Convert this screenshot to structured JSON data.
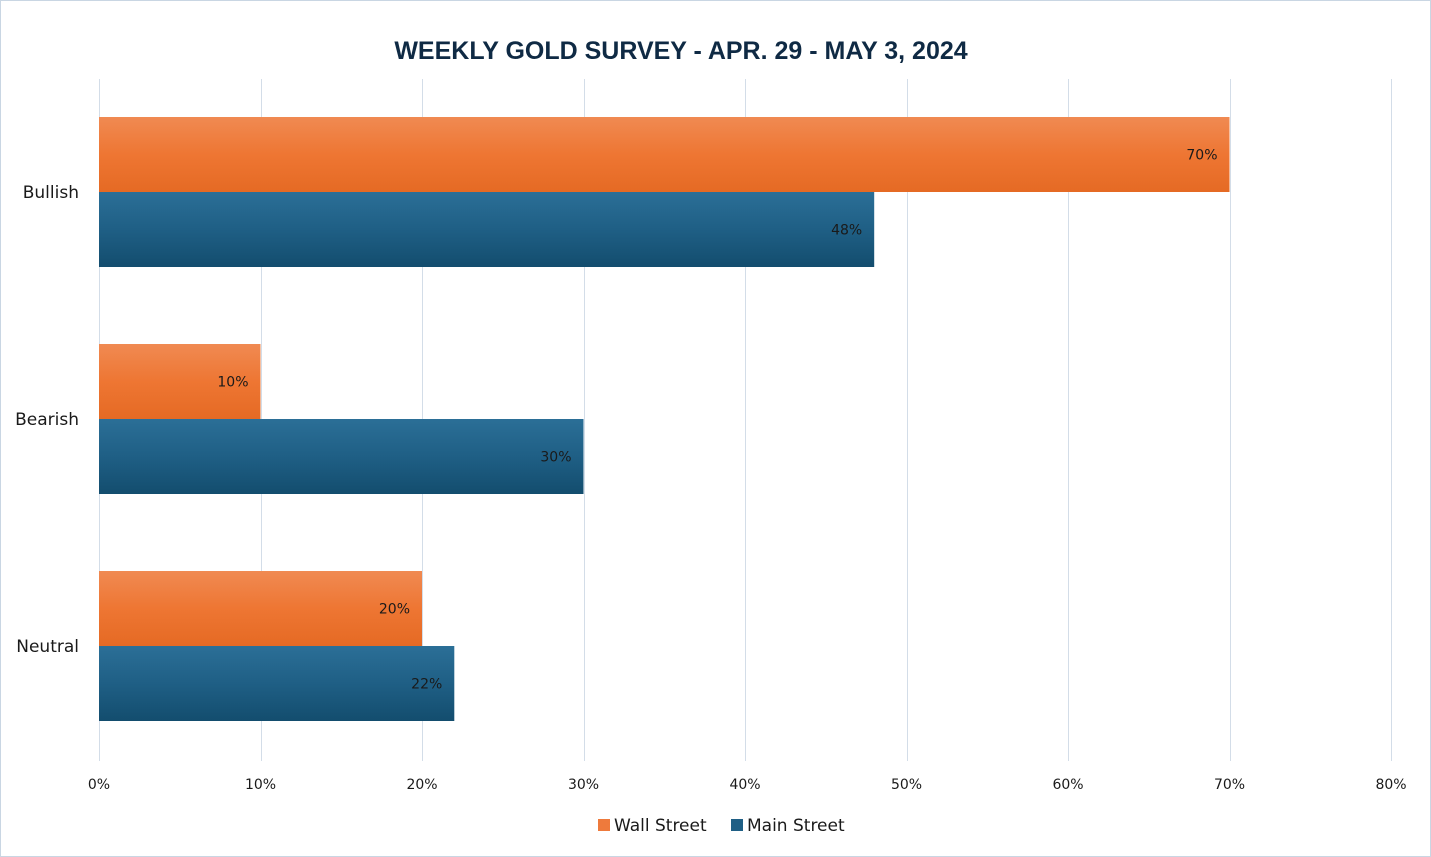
{
  "chart_data": {
    "type": "bar",
    "orientation": "horizontal",
    "title": "WEEKLY GOLD SURVEY - APR. 29 - MAY 3, 2024",
    "categories": [
      "Bullish",
      "Bearish",
      "Neutral"
    ],
    "series": [
      {
        "name": "Wall Street",
        "color": "#ee7a3c",
        "values": [
          70,
          10,
          20
        ],
        "labels": [
          "70%",
          "10%",
          "20%"
        ]
      },
      {
        "name": "Main Street",
        "color": "#1f5f85",
        "values": [
          48,
          30,
          22
        ],
        "labels": [
          "48%",
          "30%",
          "22%"
        ]
      }
    ],
    "xlim": [
      0,
      80
    ],
    "x_ticks": [
      0,
      10,
      20,
      30,
      40,
      50,
      60,
      70,
      80
    ],
    "x_tick_labels": [
      "0%",
      "10%",
      "20%",
      "30%",
      "40%",
      "50%",
      "60%",
      "70%",
      "80%"
    ],
    "xlabel": "",
    "ylabel": "",
    "grid": "vertical",
    "legend_position": "bottom"
  }
}
